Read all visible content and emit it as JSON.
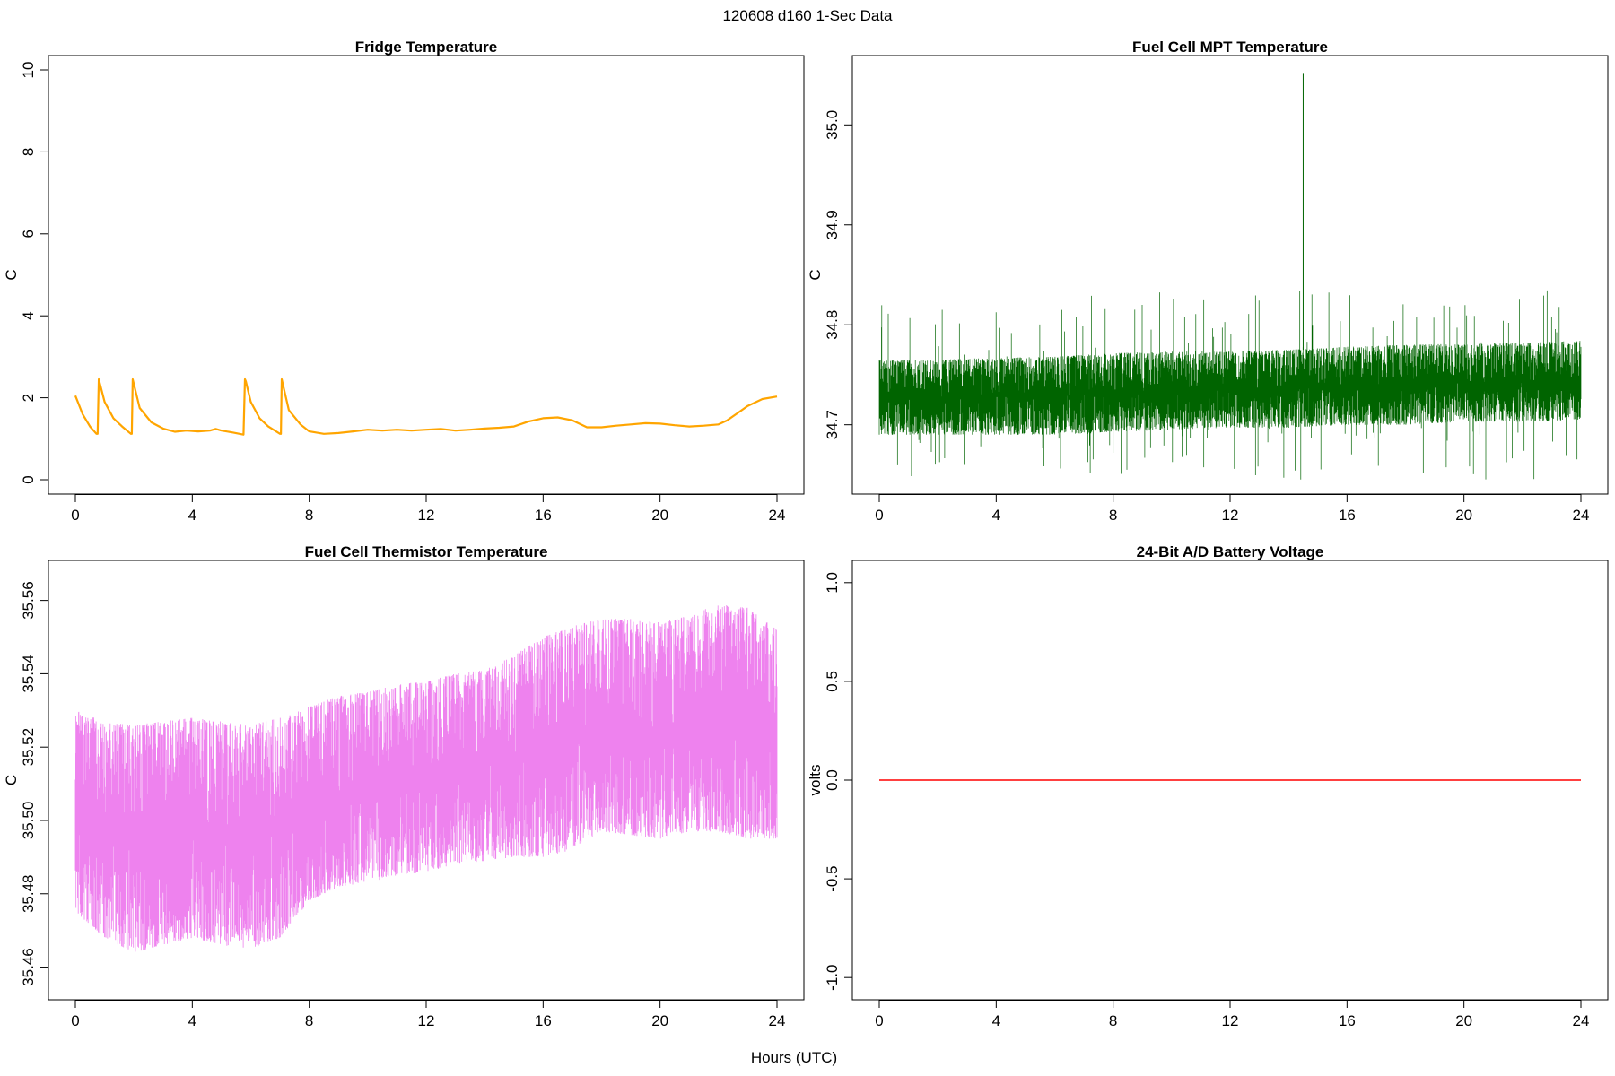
{
  "suptitle": "120608   d160   1-Sec Data",
  "shared_xlabel": "Hours (UTC)",
  "chart_data": [
    {
      "type": "line",
      "title": "Fridge Temperature",
      "ylabel": "C",
      "xlabel": "",
      "xlim": [
        0,
        24
      ],
      "ylim": [
        0,
        10
      ],
      "xticks": [
        0,
        4,
        8,
        12,
        16,
        20,
        24
      ],
      "xtick_labels": [
        "0",
        "4",
        "8",
        "12",
        "16",
        "20",
        "24"
      ],
      "yticks": [
        0,
        2,
        4,
        6,
        8,
        10
      ],
      "ytick_labels": [
        "0",
        "2",
        "4",
        "6",
        "8",
        "10"
      ],
      "color": "#FFA500",
      "grid": false,
      "series": [
        {
          "x": [
            0,
            0.25,
            0.5,
            0.72,
            0.76,
            0.8,
            1.0,
            1.3,
            1.6,
            1.9,
            1.93,
            1.96,
            2.2,
            2.6,
            3.0,
            3.4,
            3.8,
            4.2,
            4.6,
            4.8,
            5.0,
            5.4,
            5.75,
            5.8,
            5.83,
            6.0,
            6.3,
            6.6,
            7.0,
            7.03,
            7.06,
            7.3,
            7.7,
            8.0,
            8.5,
            9.0,
            9.5,
            10.0,
            10.5,
            11.0,
            11.5,
            12.0,
            12.5,
            13.0,
            13.5,
            14.0,
            14.5,
            15.0,
            15.5,
            16.0,
            16.5,
            17.0,
            17.5,
            18.0,
            18.5,
            19.0,
            19.5,
            20.0,
            20.5,
            21.0,
            21.5,
            22.0,
            22.3,
            22.7,
            23.0,
            23.5,
            24.0
          ],
          "y": [
            2.05,
            1.6,
            1.3,
            1.12,
            1.12,
            2.45,
            1.9,
            1.5,
            1.3,
            1.12,
            1.12,
            2.45,
            1.75,
            1.4,
            1.25,
            1.17,
            1.2,
            1.18,
            1.2,
            1.24,
            1.2,
            1.15,
            1.1,
            2.45,
            2.4,
            1.9,
            1.5,
            1.3,
            1.12,
            1.12,
            2.45,
            1.7,
            1.35,
            1.18,
            1.12,
            1.14,
            1.18,
            1.22,
            1.2,
            1.22,
            1.2,
            1.22,
            1.24,
            1.2,
            1.22,
            1.25,
            1.27,
            1.3,
            1.42,
            1.5,
            1.52,
            1.45,
            1.28,
            1.28,
            1.32,
            1.35,
            1.38,
            1.37,
            1.33,
            1.3,
            1.32,
            1.35,
            1.45,
            1.65,
            1.8,
            1.97,
            2.03
          ]
        }
      ]
    },
    {
      "type": "line",
      "title": "Fuel Cell MPT Temperature",
      "ylabel": "C",
      "xlabel": "",
      "xlim": [
        0,
        24
      ],
      "ylim": [
        34.645,
        35.055
      ],
      "xticks": [
        0,
        4,
        8,
        12,
        16,
        20,
        24
      ],
      "xtick_labels": [
        "0",
        "4",
        "8",
        "12",
        "16",
        "20",
        "24"
      ],
      "yticks": [
        34.7,
        34.8,
        34.9,
        35.0
      ],
      "ytick_labels": [
        "34.7",
        "34.8",
        "34.9",
        "35.0"
      ],
      "color": "#006400",
      "grid": false,
      "series": [
        {
          "x": [
            0,
            2,
            4,
            6,
            8,
            10,
            12,
            14,
            14.5,
            16,
            18,
            20,
            22,
            24
          ],
          "y": [
            34.726,
            34.727,
            34.728,
            34.729,
            34.731,
            34.732,
            34.733,
            34.734,
            35.052,
            34.737,
            34.739,
            34.74,
            34.741,
            34.742
          ],
          "noise_band_low": [
            34.69,
            34.69,
            34.69,
            34.69,
            34.693,
            34.695,
            34.697,
            34.697,
            34.697,
            34.7,
            34.7,
            34.703,
            34.703,
            34.705
          ],
          "noise_band_high": [
            34.765,
            34.765,
            34.767,
            34.768,
            34.772,
            34.773,
            34.774,
            34.775,
            34.775,
            34.778,
            34.78,
            34.781,
            34.782,
            34.784
          ],
          "extreme_low": 34.645,
          "extreme_high": 34.835
        }
      ]
    },
    {
      "type": "line",
      "title": "Fuel Cell Thermistor Temperature",
      "ylabel": "C",
      "xlabel": "",
      "xlim": [
        0,
        24
      ],
      "ylim": [
        35.455,
        35.567
      ],
      "xticks": [
        0,
        4,
        8,
        12,
        16,
        20,
        24
      ],
      "xtick_labels": [
        "0",
        "4",
        "8",
        "12",
        "16",
        "20",
        "24"
      ],
      "yticks": [
        35.46,
        35.48,
        35.5,
        35.52,
        35.54,
        35.56
      ],
      "ytick_labels": [
        "35.46",
        "35.48",
        "35.50",
        "35.52",
        "35.54",
        "35.56"
      ],
      "color": "#EE82EE",
      "grid": false,
      "series": [
        {
          "x": [
            0,
            1,
            2,
            3,
            4,
            5,
            6,
            7,
            8,
            9,
            10,
            11,
            12,
            13,
            14,
            15,
            16,
            17,
            18,
            19,
            20,
            21,
            22,
            23,
            24
          ],
          "center": [
            35.502,
            35.498,
            35.496,
            35.497,
            35.498,
            35.497,
            35.497,
            35.499,
            35.504,
            35.506,
            35.508,
            35.51,
            35.512,
            35.514,
            35.515,
            35.517,
            35.518,
            35.521,
            35.524,
            35.523,
            35.522,
            35.525,
            35.526,
            35.525,
            35.522
          ],
          "low": [
            35.475,
            35.468,
            35.464,
            35.466,
            35.468,
            35.466,
            35.465,
            35.468,
            35.478,
            35.482,
            35.483,
            35.485,
            35.486,
            35.488,
            35.489,
            35.49,
            35.49,
            35.492,
            35.497,
            35.496,
            35.495,
            35.497,
            35.497,
            35.495,
            35.495
          ],
          "high": [
            35.53,
            35.527,
            35.526,
            35.527,
            35.528,
            35.527,
            35.526,
            35.528,
            35.531,
            35.534,
            35.535,
            35.537,
            35.538,
            35.54,
            35.541,
            35.545,
            35.55,
            35.553,
            35.555,
            35.555,
            35.554,
            35.556,
            35.559,
            35.558,
            35.552
          ]
        }
      ]
    },
    {
      "type": "line",
      "title": "24-Bit A/D Battery Voltage",
      "ylabel": "volts",
      "xlabel": "",
      "xlim": [
        0,
        24
      ],
      "ylim": [
        -1.04,
        1.04
      ],
      "xticks": [
        0,
        4,
        8,
        12,
        16,
        20,
        24
      ],
      "xtick_labels": [
        "0",
        "4",
        "8",
        "12",
        "16",
        "20",
        "24"
      ],
      "yticks": [
        -1.0,
        -0.5,
        0.0,
        0.5,
        1.0
      ],
      "ytick_labels": [
        "-1.0",
        "-0.5",
        "0.0",
        "0.5",
        "1.0"
      ],
      "color": "#FF0000",
      "grid": false,
      "series": [
        {
          "x": [
            0,
            24
          ],
          "y": [
            0,
            0
          ]
        }
      ]
    }
  ]
}
